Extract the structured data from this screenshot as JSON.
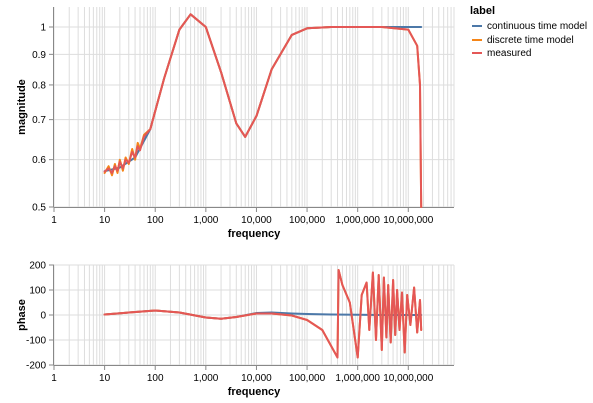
{
  "chart_data": [
    {
      "type": "line",
      "xlabel": "frequency",
      "ylabel": "magnitude",
      "xscale": "log",
      "yscale": "log",
      "xlim": [
        1,
        80000000
      ],
      "ylim": [
        0.5,
        1.08
      ],
      "xticks": [
        "1",
        "10",
        "100",
        "1,000",
        "10,000",
        "100,000",
        "1,000,000",
        "10,000,000"
      ],
      "yticks": [
        "0.5",
        "0.6",
        "0.7",
        "0.8",
        "0.9",
        "1"
      ],
      "grid": true,
      "series": [
        {
          "name": "continuous time model",
          "x": [
            10,
            20,
            40,
            80,
            150,
            300,
            500,
            1000,
            2000,
            4000,
            6000,
            10000,
            20000,
            50000,
            100000,
            300000,
            1000000,
            3000000,
            10000000,
            18000000
          ],
          "y": [
            0.574,
            0.582,
            0.605,
            0.675,
            0.82,
            0.99,
            1.05,
            1.0,
            0.84,
            0.69,
            0.655,
            0.71,
            0.85,
            0.97,
            0.995,
            1.0,
            1.0,
            1.0,
            1.0,
            1.0
          ]
        },
        {
          "name": "discrete time model",
          "x": [
            10,
            12,
            14,
            16,
            18,
            20,
            23,
            26,
            30,
            35,
            40,
            45,
            50,
            60,
            80,
            150,
            300,
            500,
            1000,
            2000,
            4000,
            6000,
            10000,
            20000,
            50000,
            100000,
            300000,
            1000000,
            3000000,
            10000000,
            15000000,
            17000000,
            18000000
          ],
          "y": [
            0.57,
            0.585,
            0.565,
            0.59,
            0.57,
            0.6,
            0.575,
            0.605,
            0.59,
            0.625,
            0.6,
            0.64,
            0.625,
            0.66,
            0.675,
            0.82,
            0.99,
            1.05,
            1.0,
            0.84,
            0.69,
            0.655,
            0.71,
            0.85,
            0.97,
            0.995,
            1.0,
            1.0,
            1.0,
            0.99,
            0.93,
            0.8,
            0.5
          ]
        },
        {
          "name": "measured",
          "x": [
            10,
            12,
            14,
            16,
            18,
            20,
            23,
            26,
            30,
            35,
            40,
            45,
            50,
            60,
            80,
            150,
            300,
            500,
            1000,
            2000,
            4000,
            6000,
            10000,
            20000,
            50000,
            100000,
            300000,
            1000000,
            3000000,
            10000000,
            15000000,
            17000000,
            18000000
          ],
          "y": [
            0.573,
            0.58,
            0.57,
            0.585,
            0.575,
            0.595,
            0.58,
            0.6,
            0.593,
            0.618,
            0.605,
            0.632,
            0.622,
            0.656,
            0.675,
            0.82,
            0.99,
            1.05,
            1.0,
            0.84,
            0.69,
            0.655,
            0.71,
            0.85,
            0.97,
            0.995,
            1.0,
            1.0,
            1.0,
            0.99,
            0.93,
            0.8,
            0.5
          ]
        }
      ]
    },
    {
      "type": "line",
      "xlabel": "frequency",
      "ylabel": "phase",
      "xscale": "log",
      "xlim": [
        1,
        80000000
      ],
      "ylim": [
        -200,
        200
      ],
      "xticks": [
        "1",
        "10",
        "100",
        "1,000",
        "10,000",
        "100,000",
        "1,000,000",
        "10,000,000"
      ],
      "yticks": [
        "-200",
        "-100",
        "0",
        "100",
        "200"
      ],
      "grid": true,
      "series": [
        {
          "name": "continuous time model",
          "x": [
            10,
            30,
            100,
            300,
            1000,
            2000,
            4000,
            10000,
            20000,
            50000,
            100000,
            300000,
            1000000,
            3000000,
            10000000,
            18000000
          ],
          "y": [
            2,
            10,
            18,
            10,
            -10,
            -15,
            -8,
            8,
            10,
            6,
            4,
            2,
            1,
            0,
            0,
            0
          ]
        },
        {
          "name": "discrete time model",
          "x": [
            10,
            30,
            100,
            300,
            1000,
            2000,
            4000,
            10000,
            20000,
            50000,
            100000,
            200000,
            400000,
            420000,
            500000,
            700000,
            1000000,
            1200000,
            1500000,
            1700000,
            2000000,
            2300000,
            2600000,
            3000000,
            3300000,
            3700000,
            4000000,
            4500000,
            5000000,
            5500000,
            6000000,
            6700000,
            7500000,
            8500000,
            9500000,
            11000000,
            13000000,
            15000000,
            17000000,
            18000000
          ],
          "y": [
            2,
            10,
            18,
            10,
            -10,
            -15,
            -8,
            6,
            6,
            -2,
            -20,
            -60,
            -170,
            180,
            120,
            50,
            -170,
            80,
            130,
            -60,
            170,
            -100,
            160,
            -140,
            150,
            -90,
            120,
            -110,
            140,
            -80,
            100,
            -60,
            90,
            -150,
            80,
            -40,
            110,
            -70,
            60,
            -60
          ]
        },
        {
          "name": "measured",
          "x": [
            10,
            30,
            100,
            300,
            1000,
            2000,
            4000,
            10000,
            20000,
            50000,
            100000,
            200000,
            400000,
            420000,
            500000,
            700000,
            1000000,
            1200000,
            1500000,
            1700000,
            2000000,
            2300000,
            2600000,
            3000000,
            3300000,
            3700000,
            4000000,
            4500000,
            5000000,
            5500000,
            6000000,
            6700000,
            7500000,
            8500000,
            9500000,
            11000000,
            13000000,
            15000000,
            17000000,
            18000000
          ],
          "y": [
            2,
            10,
            18,
            10,
            -10,
            -15,
            -8,
            6,
            6,
            -2,
            -20,
            -60,
            -170,
            180,
            120,
            50,
            -170,
            80,
            130,
            -60,
            170,
            -100,
            160,
            -140,
            150,
            -90,
            120,
            -110,
            140,
            -80,
            100,
            -60,
            90,
            -150,
            80,
            -40,
            110,
            -70,
            60,
            -60
          ]
        }
      ]
    }
  ],
  "legend": {
    "title": "label",
    "placement": "top-right",
    "entries": [
      {
        "label": "continuous time model",
        "color": "#4c78a8"
      },
      {
        "label": "discrete time model",
        "color": "#f58518"
      },
      {
        "label": "measured",
        "color": "#e45756"
      }
    ]
  }
}
